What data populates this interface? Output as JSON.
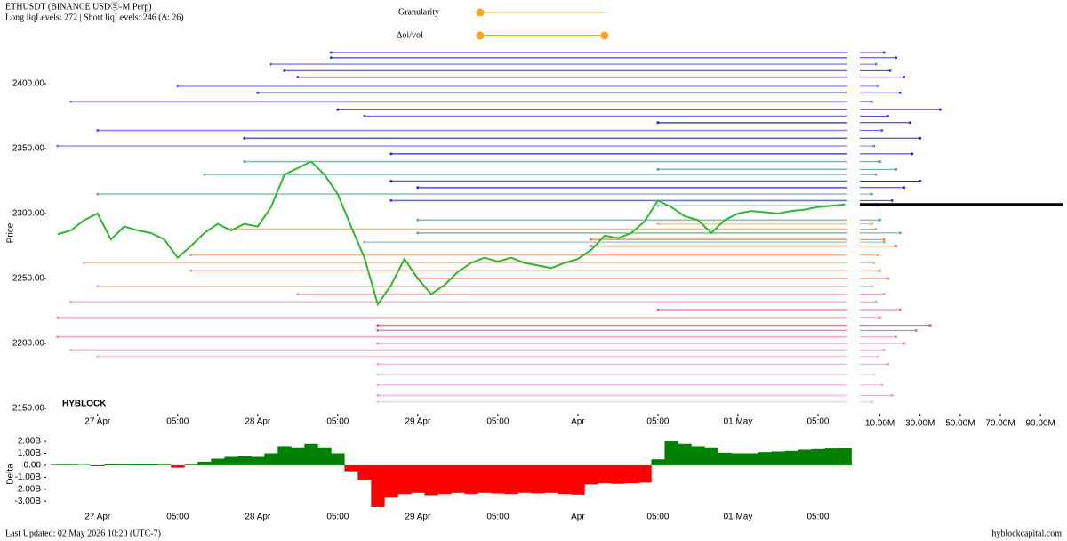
{
  "header": {
    "title": "ETHUSDT (BINANCE USDⓈ-M Perp)",
    "subtitle": "Long liqLevels: 272 | Short liqLevels: 246 (Δ: 26)"
  },
  "controls": {
    "granularity": "Granularity",
    "oi_vol": "Δoi/vol"
  },
  "footer": {
    "updated": "Last Updated: 02 May 2026 10:20 (UTC-7)",
    "site": "hyblockcapital.com"
  },
  "chart_data": [
    {
      "type": "line",
      "ylabel": "Price",
      "watermark": "HYBLOCK",
      "color": "#2eb82e",
      "x": [
        -6,
        -4,
        -2,
        0,
        2,
        4,
        6,
        8,
        10,
        12,
        14,
        16,
        18,
        20,
        22,
        24,
        26,
        28,
        30,
        32,
        34,
        36,
        38,
        40,
        42,
        44,
        46,
        48,
        50,
        52,
        54,
        56,
        58,
        60,
        62,
        64,
        66,
        68,
        70,
        72,
        74,
        76,
        78,
        80,
        82,
        84,
        86,
        88,
        90,
        92,
        94,
        96,
        98,
        100,
        102,
        104,
        106,
        108,
        110,
        112
      ],
      "values": [
        2284,
        2287,
        2295,
        2300,
        2280,
        2290,
        2287,
        2285,
        2280,
        2266,
        2275,
        2285,
        2292,
        2287,
        2292,
        2290,
        2305,
        2330,
        2335,
        2340,
        2330,
        2315,
        2290,
        2266,
        2230,
        2245,
        2265,
        2250,
        2238,
        2245,
        2255,
        2262,
        2266,
        2263,
        2266,
        2262,
        2260,
        2258,
        2262,
        2265,
        2272,
        2283,
        2281,
        2285,
        2294,
        2310,
        2305,
        2298,
        2295,
        2285,
        2295,
        2300,
        2302,
        2301,
        2300,
        2302,
        2303,
        2305,
        2306,
        2307
      ],
      "xlim": [
        -7.7,
        112.4
      ],
      "xticks": [
        {
          "value": 0,
          "label": "27 Apr"
        },
        {
          "value": 12,
          "label": "05:00"
        },
        {
          "value": 24,
          "label": "28 Apr"
        },
        {
          "value": 36,
          "label": "05:00"
        },
        {
          "value": 48,
          "label": "29 Apr"
        },
        {
          "value": 60,
          "label": "05:00"
        },
        {
          "value": 72,
          "label": "Apr"
        },
        {
          "value": 84,
          "label": "05:00"
        },
        {
          "value": 96,
          "label": "01 May"
        },
        {
          "value": 108,
          "label": "05:00"
        }
      ],
      "ylim": [
        2145.9,
        2426.7
      ],
      "yticks": [
        {
          "value": 2150,
          "label": "2150.00"
        },
        {
          "value": 2200,
          "label": "2200.00"
        },
        {
          "value": 2250,
          "label": "2250.00"
        },
        {
          "value": 2300,
          "label": "2300.00"
        },
        {
          "value": 2350,
          "label": "2350.00"
        },
        {
          "value": 2400,
          "label": "2400.00"
        }
      ],
      "levels": {
        "short": {
          "prices": [
            2424,
            2420,
            2415,
            2410,
            2405,
            2398,
            2393,
            2386,
            2380,
            2375,
            2370,
            2364,
            2358,
            2352,
            2346,
            2340,
            2334,
            2330,
            2325,
            2320,
            2315,
            2310,
            2306,
            2295,
            2285,
            2278
          ],
          "starts": [
            35,
            35,
            26,
            28,
            30,
            12,
            24,
            -4,
            36,
            40,
            84,
            0,
            22,
            -6,
            44,
            22,
            84,
            16,
            44,
            48,
            0,
            44,
            84,
            48,
            48,
            40
          ],
          "sizes": [
            12,
            18,
            8,
            15,
            22,
            9,
            20,
            6,
            40,
            14,
            25,
            11,
            30,
            7,
            26,
            10,
            18,
            8,
            30,
            22,
            6,
            16,
            9,
            10,
            20,
            12
          ],
          "colors": [
            "#3a3adf",
            "#3a3adf",
            "#6b6bf0",
            "#3a3adf",
            "#2c2cd6",
            "#7a7af2",
            "#2c2cd6",
            "#8f8ff5",
            "#2424cc",
            "#4a4ae3",
            "#2424cc",
            "#5c5ceb",
            "#2424cc",
            "#7a7af2",
            "#2424cc",
            "#5f9ea0",
            "#5f9ea0",
            "#66b2b2",
            "#1f1fd0",
            "#2b2bd8",
            "#66b2b2",
            "#3a3adf",
            "#7fbfbf",
            "#5fa8a8",
            "#5fa8a8",
            "#7fbfbf"
          ]
        },
        "long": {
          "prices": [
            2292,
            2288,
            2280,
            2275,
            2268,
            2262,
            2256,
            2250,
            2244,
            2238,
            2232,
            2226,
            2220,
            2214,
            2210,
            2205,
            2200,
            2195,
            2190,
            2184,
            2176,
            2168,
            2160,
            2155
          ],
          "starts": [
            84,
            20,
            74,
            74,
            14,
            -2,
            14,
            48,
            0,
            30,
            -4,
            84,
            -6,
            42,
            42,
            -6,
            42,
            -4,
            0,
            42,
            42,
            42,
            42,
            42
          ],
          "sizes": [
            6,
            8,
            12,
            18,
            9,
            7,
            10,
            14,
            6,
            12,
            8,
            20,
            10,
            35,
            28,
            18,
            22,
            12,
            9,
            14,
            7,
            11,
            16,
            6
          ],
          "colors": [
            "#f5b26b",
            "#f5a050",
            "#f08030",
            "#e86a4a",
            "#f0a060",
            "#f4b87a",
            "#f09070",
            "#ee7a6a",
            "#f7b0a0",
            "#f59c9c",
            "#f4a0a8",
            "#f07090",
            "#f5a0b0",
            "#ee5577",
            "#ec6688",
            "#f08cb0",
            "#f07aa8",
            "#f5a8c8",
            "#f5b5d8",
            "#f2a0d8",
            "#f5b8e5",
            "#f2a5e0",
            "#f0a0e0",
            "#f5c0ea"
          ]
        }
      },
      "side_panel": {
        "xlim": [
          0,
          101
        ],
        "xticks": [
          {
            "value": 10,
            "label": "10.00M"
          },
          {
            "value": 30,
            "label": "30.00M"
          },
          {
            "value": 50,
            "label": "50.00M"
          },
          {
            "value": 70,
            "label": "70.00M"
          },
          {
            "value": 90,
            "label": "90.00M"
          }
        ]
      }
    },
    {
      "type": "bar",
      "ylabel": "Delta",
      "positive_color": "#008000",
      "negative_color": "#ff0000",
      "x": [
        -6,
        -4,
        -2,
        0,
        2,
        4,
        6,
        8,
        10,
        12,
        14,
        16,
        18,
        20,
        22,
        24,
        26,
        28,
        30,
        32,
        34,
        36,
        38,
        40,
        42,
        44,
        46,
        48,
        50,
        52,
        54,
        56,
        58,
        60,
        62,
        64,
        66,
        68,
        70,
        72,
        74,
        76,
        78,
        80,
        82,
        84,
        86,
        88,
        90,
        92,
        94,
        96,
        98,
        100,
        102,
        104,
        106,
        108,
        110,
        112
      ],
      "values": [
        0.05,
        0.05,
        0.03,
        -0.08,
        0.1,
        0.08,
        0.1,
        0.1,
        0.05,
        -0.2,
        0.05,
        0.3,
        0.55,
        0.7,
        0.75,
        0.7,
        1.0,
        1.6,
        1.5,
        1.8,
        1.5,
        1.0,
        -0.5,
        -1.2,
        -3.5,
        -2.7,
        -2.4,
        -2.3,
        -2.5,
        -2.4,
        -2.3,
        -2.4,
        -2.3,
        -2.35,
        -2.4,
        -2.3,
        -2.35,
        -2.3,
        -2.4,
        -2.45,
        -1.6,
        -1.5,
        -1.55,
        -1.5,
        -1.45,
        0.5,
        2.0,
        1.8,
        1.6,
        1.5,
        1.05,
        1.0,
        1.0,
        1.1,
        1.15,
        1.2,
        1.3,
        1.35,
        1.4,
        1.45
      ],
      "xlim": [
        -7.7,
        112.4
      ],
      "xticks": [
        {
          "value": 0,
          "label": "27 Apr"
        },
        {
          "value": 12,
          "label": "05:00"
        },
        {
          "value": 24,
          "label": "28 Apr"
        },
        {
          "value": 36,
          "label": "05:00"
        },
        {
          "value": 48,
          "label": "29 Apr"
        },
        {
          "value": 60,
          "label": "05:00"
        },
        {
          "value": 72,
          "label": "Apr"
        },
        {
          "value": 84,
          "label": "05:00"
        },
        {
          "value": 96,
          "label": "01 May"
        },
        {
          "value": 108,
          "label": "05:00"
        }
      ],
      "ylim": [
        -4.1,
        2.6
      ],
      "yticks": [
        {
          "value": 2,
          "label": "2.00B"
        },
        {
          "value": 1,
          "label": "1.00B"
        },
        {
          "value": 0,
          "label": "0.00"
        },
        {
          "value": -1,
          "label": "-1.00B"
        },
        {
          "value": -2,
          "label": "-2.00B"
        },
        {
          "value": -3,
          "label": "-3.00B"
        }
      ]
    }
  ]
}
